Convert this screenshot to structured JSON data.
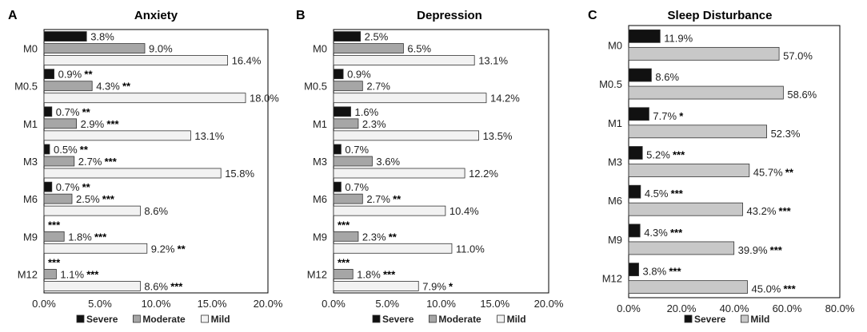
{
  "figure": {
    "legend_labels": {
      "severe": "Severe",
      "moderate": "Moderate",
      "mild": "Mild"
    },
    "colors": {
      "severe": "#111111",
      "moderate": "#a6a6a6",
      "mild": "#f2f2f2",
      "sleep_mild": "#c8c8c8",
      "outline": "#333333",
      "axis": "#000000",
      "text": "#222222"
    }
  },
  "chart_data": [
    {
      "type": "bar",
      "orientation": "horizontal",
      "panel_label": "A",
      "title": "Anxiety",
      "categories": [
        "M0",
        "M0.5",
        "M1",
        "M3",
        "M6",
        "M9",
        "M12"
      ],
      "xlim": [
        0,
        20
      ],
      "x_ticks": [
        "0.0%",
        "5.0%",
        "10.0%",
        "15.0%",
        "20.0%"
      ],
      "series": [
        {
          "key": "severe",
          "name": "Severe",
          "values": [
            3.8,
            0.9,
            0.7,
            0.5,
            0.7,
            0,
            0
          ],
          "labels": [
            "3.8%",
            "0.9%",
            "0.7%",
            "0.5%",
            "0.7%",
            "",
            ""
          ],
          "stars": [
            "",
            "**",
            "**",
            "**",
            "**",
            "***",
            "***"
          ]
        },
        {
          "key": "moderate",
          "name": "Moderate",
          "values": [
            9.0,
            4.3,
            2.9,
            2.7,
            2.5,
            1.8,
            1.1
          ],
          "labels": [
            "9.0%",
            "4.3%",
            "2.9%",
            "2.7%",
            "2.5%",
            "1.8%",
            "1.1%"
          ],
          "stars": [
            "",
            "**",
            "***",
            "***",
            "***",
            "***",
            "***"
          ]
        },
        {
          "key": "mild",
          "name": "Mild",
          "values": [
            16.4,
            18.0,
            13.1,
            15.8,
            8.6,
            9.2,
            8.6
          ],
          "labels": [
            "16.4%",
            "18.0%",
            "13.1%",
            "15.8%",
            "8.6%",
            "9.2%",
            "8.6%"
          ],
          "stars": [
            "",
            "",
            "",
            "",
            "",
            "**",
            "***"
          ]
        }
      ]
    },
    {
      "type": "bar",
      "orientation": "horizontal",
      "panel_label": "B",
      "title": "Depression",
      "categories": [
        "M0",
        "M0.5",
        "M1",
        "M3",
        "M6",
        "M9",
        "M12"
      ],
      "xlim": [
        0,
        20
      ],
      "x_ticks": [
        "0.0%",
        "5.0%",
        "10.0%",
        "15.0%",
        "20.0%"
      ],
      "series": [
        {
          "key": "severe",
          "name": "Severe",
          "values": [
            2.5,
            0.9,
            1.6,
            0.7,
            0.7,
            0,
            0
          ],
          "labels": [
            "2.5%",
            "0.9%",
            "1.6%",
            "0.7%",
            "0.7%",
            "",
            ""
          ],
          "stars": [
            "",
            "",
            "",
            "",
            "",
            "***",
            "***"
          ]
        },
        {
          "key": "moderate",
          "name": "Moderate",
          "values": [
            6.5,
            2.7,
            2.3,
            3.6,
            2.7,
            2.3,
            1.8
          ],
          "labels": [
            "6.5%",
            "2.7%",
            "2.3%",
            "3.6%",
            "2.7%",
            "2.3%",
            "1.8%"
          ],
          "stars": [
            "",
            "",
            "",
            "",
            "**",
            "**",
            "***"
          ]
        },
        {
          "key": "mild",
          "name": "Mild",
          "values": [
            13.1,
            14.2,
            13.5,
            12.2,
            10.4,
            11.0,
            7.9
          ],
          "labels": [
            "13.1%",
            "14.2%",
            "13.5%",
            "12.2%",
            "10.4%",
            "11.0%",
            "7.9%"
          ],
          "stars": [
            "",
            "",
            "",
            "",
            "",
            "",
            "*"
          ]
        }
      ]
    },
    {
      "type": "bar",
      "orientation": "horizontal",
      "panel_label": "C",
      "title": "Sleep Disturbance",
      "categories": [
        "M0",
        "M0.5",
        "M1",
        "M3",
        "M6",
        "M9",
        "M12"
      ],
      "xlim": [
        0,
        80
      ],
      "x_ticks": [
        "0.0%",
        "20.0%",
        "40.0%",
        "60.0%",
        "80.0%"
      ],
      "series": [
        {
          "key": "severe",
          "name": "Severe",
          "values": [
            11.9,
            8.6,
            7.7,
            5.2,
            4.5,
            4.3,
            3.8
          ],
          "labels": [
            "11.9%",
            "8.6%",
            "7.7%",
            "5.2%",
            "4.5%",
            "4.3%",
            "3.8%"
          ],
          "stars": [
            "",
            "",
            "*",
            "***",
            "***",
            "***",
            "***"
          ]
        },
        {
          "key": "sleep_mild",
          "name": "Mild",
          "values": [
            57.0,
            58.6,
            52.3,
            45.7,
            43.2,
            39.9,
            45.0
          ],
          "labels": [
            "57.0%",
            "58.6%",
            "52.3%",
            "45.7%",
            "43.2%",
            "39.9%",
            "45.0%"
          ],
          "stars": [
            "",
            "",
            "",
            "**",
            "***",
            "***",
            "***"
          ]
        }
      ]
    }
  ]
}
